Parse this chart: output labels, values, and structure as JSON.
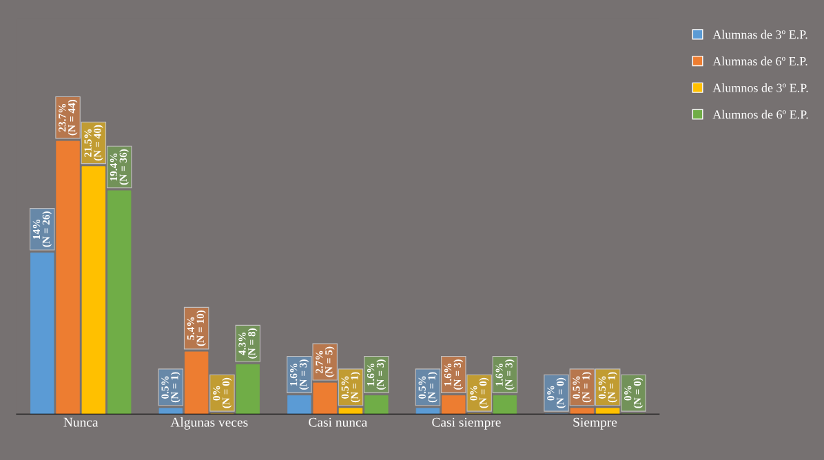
{
  "chart_data": {
    "type": "bar",
    "categories": [
      "Nunca",
      "Algunas veces",
      "Casi nunca",
      "Casi siempre",
      "Siempre"
    ],
    "series": [
      {
        "name": "Alumnas de 3º E.P.",
        "color": "#5b9bd5",
        "values": [
          14,
          0.5,
          1.6,
          0.5,
          0
        ],
        "value_labels": [
          "14%\n(N = 26)",
          "0.5%\n(N = 1)",
          "1.6%\n(N = 3)",
          "0.5%\n(N = 1)",
          "0%\n(N = 0)"
        ]
      },
      {
        "name": "Alumnas de 6º E.P.",
        "color": "#ed7d31",
        "values": [
          23.7,
          5.4,
          2.7,
          1.6,
          0.5
        ],
        "value_labels": [
          "23.7%\n(N = 44)",
          "5.4%\n(N = 10)",
          "2.7%\n(N = 5)",
          "1.6%\n(N = 3)",
          "0.5%\n(N = 1)"
        ]
      },
      {
        "name": "Alumnos de 3º E.P.",
        "color": "#ffc000",
        "values": [
          21.5,
          0,
          0.5,
          0,
          0.5
        ],
        "value_labels": [
          "21.5%\n(N = 40)",
          "0%\n(N = 0)",
          "0.5%\n(N = 1)",
          "0%\n(N = 0)",
          "0.5%\n(N = 1)"
        ]
      },
      {
        "name": "Alumnos de 6º E.P.",
        "color": "#70ad47",
        "values": [
          19.4,
          4.3,
          1.6,
          1.6,
          0
        ],
        "value_labels": [
          "19.4%\n(N = 36)",
          "4.3%\n(N = 8)",
          "1.6%\n(N = 3)",
          "1.6%\n(N = 3)",
          "0%\n(N = 0)"
        ]
      }
    ],
    "legend": "top right",
    "grid": false
  }
}
